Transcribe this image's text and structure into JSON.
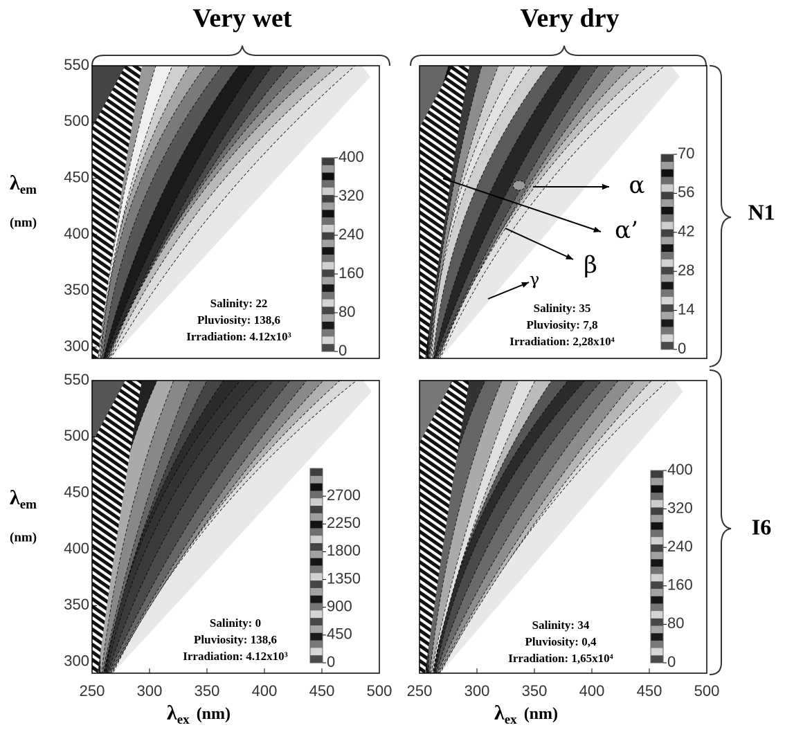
{
  "chart_data": [
    {
      "type": "contour",
      "column_title": "Very wet",
      "xlim": [
        250,
        500
      ],
      "ylim": [
        290,
        550
      ],
      "yticks": [
        300,
        350,
        400,
        450,
        500,
        550
      ],
      "ylabel": {
        "symbol": "λ",
        "subscript": "em",
        "unit": "(nm)"
      },
      "colorbar": {
        "lim": [
          0,
          400
        ],
        "ticks": [
          0,
          80,
          160,
          240,
          320,
          400
        ]
      },
      "annotations": [
        "Salinity: 22",
        "Pluviosity: 138,6",
        "Irradiation: 4.12x10³"
      ]
    },
    {
      "type": "contour",
      "column_title": "Very dry",
      "row_label": "N1",
      "xlim": [
        250,
        500
      ],
      "ylim": [
        290,
        550
      ],
      "colorbar": {
        "lim": [
          0,
          70
        ],
        "ticks": [
          0,
          14,
          28,
          42,
          56,
          70
        ]
      },
      "annotations": [
        "Salinity: 35",
        "Pluviosity: 7,8",
        "Irradiation: 2,28x10⁴"
      ],
      "peak_labels": [
        "α",
        "α’",
        "β",
        "γ"
      ]
    },
    {
      "type": "contour",
      "xlim": [
        250,
        500
      ],
      "ylim": [
        290,
        550
      ],
      "yticks": [
        300,
        350,
        400,
        450,
        500,
        550
      ],
      "xticks": [
        250,
        300,
        350,
        400,
        450,
        500
      ],
      "ylabel": {
        "symbol": "λ",
        "subscript": "em",
        "unit": "(nm)"
      },
      "xlabel": {
        "symbol": "λ",
        "subscript": "ex",
        "unit": "(nm)"
      },
      "colorbar": {
        "lim": [
          0,
          3150
        ],
        "ticks": [
          0,
          450,
          900,
          1350,
          1800,
          2250,
          2700
        ]
      },
      "annotations": [
        "Salinity: 0",
        "Pluviosity: 138,6",
        "Irradiation: 4.12x10³"
      ]
    },
    {
      "type": "contour",
      "row_label": "I6",
      "xlim": [
        250,
        500
      ],
      "ylim": [
        290,
        550
      ],
      "xticks": [
        250,
        300,
        350,
        400,
        450,
        500
      ],
      "xlabel": {
        "symbol": "λ",
        "subscript": "ex",
        "unit": "(nm)"
      },
      "colorbar": {
        "lim": [
          0,
          400
        ],
        "ticks": [
          0,
          80,
          160,
          240,
          320,
          400
        ]
      },
      "annotations": [
        "Salinity: 34",
        "Pluviosity: 0,4",
        "Irradiation: 1,65x10⁴"
      ]
    }
  ]
}
